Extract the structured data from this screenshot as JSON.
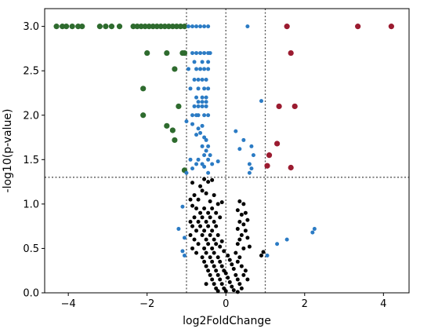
{
  "chart_data": {
    "type": "scatter",
    "title": "",
    "xlabel": "log2FoldChange",
    "ylabel": "-log10(p-value)",
    "xlim": [
      -4.6,
      4.65
    ],
    "ylim": [
      0,
      3.2
    ],
    "x_ticks": [
      -4,
      -2,
      0,
      2,
      4
    ],
    "y_ticks": [
      0.0,
      0.5,
      1.0,
      1.5,
      2.0,
      2.5,
      3.0
    ],
    "x_tick_labels": [
      "−4",
      "−2",
      "0",
      "2",
      "4"
    ],
    "y_tick_labels": [
      "0.0",
      "0.5",
      "1.0",
      "1.5",
      "2.0",
      "2.5",
      "3.0"
    ],
    "grid": false,
    "legend": "none",
    "reference_lines": {
      "vertical": [
        -1,
        0,
        1
      ],
      "horizontal": [
        1.301
      ],
      "style": "dotted",
      "color": "#555555"
    },
    "series": [
      {
        "color": "#2e6b2e",
        "points": [
          [
            -4.3,
            3.0
          ],
          [
            -4.15,
            3.0
          ],
          [
            -4.05,
            3.0
          ],
          [
            -3.9,
            3.0
          ],
          [
            -3.75,
            3.0
          ],
          [
            -3.65,
            3.0
          ],
          [
            -3.2,
            3.0
          ],
          [
            -3.05,
            3.0
          ],
          [
            -2.9,
            3.0
          ],
          [
            -2.7,
            3.0
          ],
          [
            -2.35,
            3.0
          ],
          [
            -2.25,
            3.0
          ],
          [
            -2.15,
            3.0
          ],
          [
            -2.05,
            3.0
          ],
          [
            -1.95,
            3.0
          ],
          [
            -1.85,
            3.0
          ],
          [
            -1.75,
            3.0
          ],
          [
            -1.65,
            3.0
          ],
          [
            -1.55,
            3.0
          ],
          [
            -1.45,
            3.0
          ],
          [
            -1.35,
            3.0
          ],
          [
            -1.25,
            3.0
          ],
          [
            -1.15,
            3.0
          ],
          [
            -1.05,
            3.0
          ],
          [
            -2.0,
            2.7
          ],
          [
            -1.5,
            2.7
          ],
          [
            -1.1,
            2.7
          ],
          [
            -1.05,
            2.7
          ],
          [
            -1.3,
            2.52
          ],
          [
            -2.1,
            2.3
          ],
          [
            -1.2,
            2.1
          ],
          [
            -2.1,
            2.0
          ],
          [
            -1.5,
            1.88
          ],
          [
            -1.35,
            1.83
          ],
          [
            -1.3,
            1.72
          ],
          [
            -1.05,
            1.38
          ]
        ]
      },
      {
        "color": "#2b7bc4",
        "points": [
          [
            -0.95,
            3.0
          ],
          [
            -0.85,
            3.0
          ],
          [
            -0.75,
            3.0
          ],
          [
            -0.65,
            3.0
          ],
          [
            -0.55,
            3.0
          ],
          [
            -0.45,
            3.0
          ],
          [
            0.55,
            3.0
          ],
          [
            -0.85,
            2.7
          ],
          [
            -0.75,
            2.7
          ],
          [
            -0.65,
            2.7
          ],
          [
            -0.55,
            2.7
          ],
          [
            -0.45,
            2.7
          ],
          [
            -0.4,
            2.7
          ],
          [
            -0.8,
            2.6
          ],
          [
            -0.6,
            2.6
          ],
          [
            -0.45,
            2.6
          ],
          [
            -0.95,
            2.52
          ],
          [
            -0.75,
            2.52
          ],
          [
            -0.65,
            2.52
          ],
          [
            -0.55,
            2.52
          ],
          [
            -0.45,
            2.52
          ],
          [
            -0.8,
            2.4
          ],
          [
            -0.7,
            2.4
          ],
          [
            -0.6,
            2.4
          ],
          [
            -0.5,
            2.4
          ],
          [
            -0.9,
            2.3
          ],
          [
            -0.7,
            2.3
          ],
          [
            -0.55,
            2.3
          ],
          [
            -0.45,
            2.3
          ],
          [
            -0.75,
            2.2
          ],
          [
            -0.6,
            2.2
          ],
          [
            -0.5,
            2.2
          ],
          [
            -0.7,
            2.15
          ],
          [
            -0.6,
            2.15
          ],
          [
            -0.5,
            2.15
          ],
          [
            0.9,
            2.16
          ],
          [
            -0.8,
            2.1
          ],
          [
            -0.7,
            2.1
          ],
          [
            -0.6,
            2.1
          ],
          [
            -0.5,
            2.1
          ],
          [
            -0.85,
            2.0
          ],
          [
            -0.75,
            2.0
          ],
          [
            -0.7,
            2.0
          ],
          [
            -0.55,
            2.0
          ],
          [
            -0.45,
            2.0
          ],
          [
            -1.0,
            1.93
          ],
          [
            -0.85,
            1.9
          ],
          [
            -0.6,
            1.88
          ],
          [
            -0.7,
            1.85
          ],
          [
            -0.65,
            1.8
          ],
          [
            -0.75,
            1.78
          ],
          [
            0.25,
            1.82
          ],
          [
            -0.55,
            1.75
          ],
          [
            -0.5,
            1.72
          ],
          [
            0.45,
            1.72
          ],
          [
            -0.6,
            1.65
          ],
          [
            -0.45,
            1.65
          ],
          [
            -0.5,
            1.6
          ],
          [
            0.65,
            1.65
          ],
          [
            0.35,
            1.62
          ],
          [
            -0.55,
            1.55
          ],
          [
            -0.4,
            1.55
          ],
          [
            0.7,
            1.55
          ],
          [
            -0.9,
            1.5
          ],
          [
            -0.7,
            1.5
          ],
          [
            -0.45,
            1.5
          ],
          [
            -0.2,
            1.48
          ],
          [
            -0.75,
            1.45
          ],
          [
            -0.6,
            1.45
          ],
          [
            -0.35,
            1.45
          ],
          [
            0.6,
            1.45
          ],
          [
            -0.85,
            1.4
          ],
          [
            -0.55,
            1.42
          ],
          [
            0.65,
            1.4
          ],
          [
            -1.0,
            1.35
          ],
          [
            -0.45,
            1.35
          ],
          [
            0.6,
            1.35
          ],
          [
            -1.1,
            0.97
          ],
          [
            -1.2,
            0.72
          ],
          [
            -1.05,
            0.62
          ],
          [
            -1.05,
            0.42
          ],
          [
            -1.1,
            0.47
          ],
          [
            1.05,
            0.42
          ],
          [
            1.3,
            0.55
          ],
          [
            1.55,
            0.6
          ],
          [
            2.2,
            0.68
          ],
          [
            2.25,
            0.72
          ]
        ]
      },
      {
        "color": "#9b1b30",
        "points": [
          [
            1.55,
            3.0
          ],
          [
            3.35,
            3.0
          ],
          [
            4.2,
            3.0
          ],
          [
            1.65,
            2.7
          ],
          [
            1.35,
            2.1
          ],
          [
            1.75,
            2.1
          ],
          [
            1.3,
            1.68
          ],
          [
            1.1,
            1.55
          ],
          [
            1.05,
            1.43
          ],
          [
            1.65,
            1.41
          ]
        ]
      },
      {
        "color": "#000000",
        "points": [
          [
            -0.55,
            1.28
          ],
          [
            -0.45,
            1.25
          ],
          [
            -0.35,
            1.27
          ],
          [
            -0.85,
            1.24
          ],
          [
            -0.65,
            1.2
          ],
          [
            -0.6,
            1.15
          ],
          [
            -0.5,
            1.12
          ],
          [
            -0.3,
            1.1
          ],
          [
            -0.8,
            1.1
          ],
          [
            -0.9,
            1.05
          ],
          [
            -0.7,
            1.05
          ],
          [
            -0.4,
            1.03
          ],
          [
            -0.2,
            1.0
          ],
          [
            -0.1,
            1.02
          ],
          [
            -0.85,
            0.98
          ],
          [
            -0.75,
            0.95
          ],
          [
            -0.55,
            0.95
          ],
          [
            -0.35,
            0.95
          ],
          [
            0.35,
            1.03
          ],
          [
            0.45,
            1.0
          ],
          [
            -0.65,
            0.9
          ],
          [
            -0.45,
            0.9
          ],
          [
            -0.25,
            0.9
          ],
          [
            0.3,
            0.93
          ],
          [
            0.5,
            0.9
          ],
          [
            -0.8,
            0.85
          ],
          [
            -0.6,
            0.85
          ],
          [
            -0.4,
            0.85
          ],
          [
            0.4,
            0.88
          ],
          [
            -0.15,
            0.85
          ],
          [
            -0.9,
            0.8
          ],
          [
            -0.7,
            0.8
          ],
          [
            -0.5,
            0.8
          ],
          [
            -0.3,
            0.8
          ],
          [
            0.35,
            0.8
          ],
          [
            0.55,
            0.82
          ],
          [
            -0.85,
            0.75
          ],
          [
            -0.65,
            0.75
          ],
          [
            -0.45,
            0.75
          ],
          [
            -0.25,
            0.75
          ],
          [
            0.45,
            0.77
          ],
          [
            -0.75,
            0.7
          ],
          [
            -0.55,
            0.7
          ],
          [
            -0.35,
            0.7
          ],
          [
            0.3,
            0.72
          ],
          [
            0.5,
            0.7
          ],
          [
            -0.9,
            0.65
          ],
          [
            -0.6,
            0.65
          ],
          [
            -0.4,
            0.65
          ],
          [
            -0.2,
            0.65
          ],
          [
            0.4,
            0.65
          ],
          [
            -0.8,
            0.6
          ],
          [
            -0.5,
            0.6
          ],
          [
            -0.3,
            0.6
          ],
          [
            0.35,
            0.6
          ],
          [
            0.55,
            0.62
          ],
          [
            -0.7,
            0.55
          ],
          [
            -0.45,
            0.55
          ],
          [
            -0.25,
            0.55
          ],
          [
            -0.1,
            0.58
          ],
          [
            0.3,
            0.55
          ],
          [
            -0.85,
            0.5
          ],
          [
            -0.55,
            0.5
          ],
          [
            -0.35,
            0.5
          ],
          [
            -0.15,
            0.52
          ],
          [
            0.45,
            0.5
          ],
          [
            0.6,
            0.52
          ],
          [
            -0.75,
            0.45
          ],
          [
            -0.5,
            0.45
          ],
          [
            -0.3,
            0.45
          ],
          [
            -0.05,
            0.47
          ],
          [
            0.25,
            0.45
          ],
          [
            -0.6,
            0.4
          ],
          [
            -0.4,
            0.4
          ],
          [
            -0.2,
            0.4
          ],
          [
            0.05,
            0.42
          ],
          [
            0.35,
            0.4
          ],
          [
            0.9,
            0.42
          ],
          [
            0.95,
            0.46
          ],
          [
            -0.55,
            0.35
          ],
          [
            -0.35,
            0.35
          ],
          [
            -0.15,
            0.35
          ],
          [
            0.1,
            0.37
          ],
          [
            0.3,
            0.35
          ],
          [
            -0.5,
            0.3
          ],
          [
            -0.3,
            0.3
          ],
          [
            -0.1,
            0.3
          ],
          [
            0.15,
            0.32
          ],
          [
            0.4,
            0.3
          ],
          [
            -0.45,
            0.25
          ],
          [
            -0.25,
            0.25
          ],
          [
            -0.05,
            0.25
          ],
          [
            0.2,
            0.27
          ],
          [
            0.5,
            0.25
          ],
          [
            -0.4,
            0.2
          ],
          [
            -0.2,
            0.2
          ],
          [
            0.0,
            0.22
          ],
          [
            0.25,
            0.2
          ],
          [
            0.45,
            0.2
          ],
          [
            -0.35,
            0.15
          ],
          [
            -0.15,
            0.15
          ],
          [
            0.05,
            0.17
          ],
          [
            0.3,
            0.15
          ],
          [
            0.55,
            0.15
          ],
          [
            -0.5,
            0.1
          ],
          [
            -0.3,
            0.1
          ],
          [
            -0.1,
            0.1
          ],
          [
            0.1,
            0.12
          ],
          [
            0.35,
            0.1
          ],
          [
            -0.25,
            0.05
          ],
          [
            -0.05,
            0.05
          ],
          [
            0.15,
            0.07
          ],
          [
            0.4,
            0.05
          ],
          [
            -0.2,
            0.02
          ],
          [
            0.0,
            0.02
          ],
          [
            0.2,
            0.03
          ],
          [
            0.3,
            0.01
          ]
        ]
      }
    ]
  }
}
